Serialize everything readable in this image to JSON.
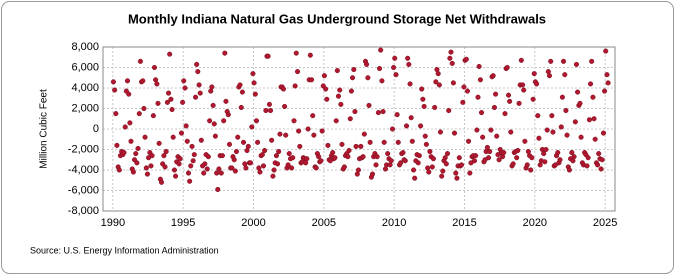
{
  "chart_data": {
    "type": "scatter",
    "title": "Monthly Indiana Natural Gas Underground Storage Net Withdrawals",
    "y_label": "Million Cubic Feet",
    "source": "Source: U.S. Energy Information Administration",
    "color": "#b0182f",
    "grid": true,
    "xlim": [
      1989.3,
      2025.7
    ],
    "xticks": [
      1990,
      1995,
      2000,
      2005,
      2010,
      2015,
      2020,
      2025
    ],
    "ylim": [
      -8000,
      8000
    ],
    "yticks": [
      {
        "value": -8000,
        "label": "-8,000"
      },
      {
        "value": -6000,
        "label": "-6,000"
      },
      {
        "value": -4000,
        "label": "-4,000"
      },
      {
        "value": -2000,
        "label": "-2,000"
      },
      0,
      {
        "value": 2000,
        "label": "2,000"
      },
      {
        "value": 4000,
        "label": "4,000"
      },
      {
        "value": 6000,
        "label": "6,000"
      },
      {
        "value": 8000,
        "label": "8,000"
      }
    ],
    "x": [
      1990.04,
      1990.13,
      1990.21,
      1990.29,
      1990.38,
      1990.46,
      1990.54,
      1990.63,
      1990.71,
      1990.79,
      1990.88,
      1990.96,
      1991.04,
      1991.13,
      1991.21,
      1991.29,
      1991.38,
      1991.46,
      1991.54,
      1991.63,
      1991.71,
      1991.79,
      1991.88,
      1991.96,
      1992.04,
      1992.13,
      1992.21,
      1992.29,
      1992.38,
      1992.46,
      1992.54,
      1992.63,
      1992.71,
      1992.79,
      1992.88,
      1992.96,
      1993.04,
      1993.13,
      1993.21,
      1993.29,
      1993.38,
      1993.46,
      1993.54,
      1993.63,
      1993.71,
      1993.79,
      1993.88,
      1993.96,
      1994.04,
      1994.13,
      1994.21,
      1994.29,
      1994.38,
      1994.46,
      1994.54,
      1994.63,
      1994.71,
      1994.79,
      1994.88,
      1994.96,
      1995.04,
      1995.13,
      1995.21,
      1995.29,
      1995.38,
      1995.46,
      1995.54,
      1995.63,
      1995.71,
      1995.79,
      1995.88,
      1995.96,
      1996.04,
      1996.13,
      1996.21,
      1996.29,
      1996.38,
      1996.46,
      1996.54,
      1996.63,
      1996.71,
      1996.79,
      1996.88,
      1996.96,
      1997.04,
      1997.13,
      1997.21,
      1997.29,
      1997.38,
      1997.46,
      1997.54,
      1997.63,
      1997.71,
      1997.79,
      1997.88,
      1997.96,
      1998.04,
      1998.13,
      1998.21,
      1998.29,
      1998.38,
      1998.46,
      1998.54,
      1998.63,
      1998.71,
      1998.79,
      1998.88,
      1998.96,
      1999.04,
      1999.13,
      1999.21,
      1999.29,
      1999.38,
      1999.46,
      1999.54,
      1999.63,
      1999.71,
      1999.79,
      1999.88,
      1999.96,
      2000.04,
      2000.13,
      2000.21,
      2000.29,
      2000.38,
      2000.46,
      2000.54,
      2000.63,
      2000.71,
      2000.79,
      2000.88,
      2000.96,
      2001.04,
      2001.13,
      2001.21,
      2001.29,
      2001.38,
      2001.46,
      2001.54,
      2001.63,
      2001.71,
      2001.79,
      2001.88,
      2001.96,
      2002.04,
      2002.13,
      2002.21,
      2002.29,
      2002.38,
      2002.46,
      2002.54,
      2002.63,
      2002.71,
      2002.79,
      2002.88,
      2002.96,
      2003.04,
      2003.13,
      2003.21,
      2003.29,
      2003.38,
      2003.46,
      2003.54,
      2003.63,
      2003.71,
      2003.79,
      2003.88,
      2003.96,
      2004.04,
      2004.13,
      2004.21,
      2004.29,
      2004.38,
      2004.46,
      2004.54,
      2004.63,
      2004.71,
      2004.79,
      2004.88,
      2004.96,
      2005.04,
      2005.13,
      2005.21,
      2005.29,
      2005.38,
      2005.46,
      2005.54,
      2005.63,
      2005.71,
      2005.79,
      2005.88,
      2005.96,
      2006.04,
      2006.13,
      2006.21,
      2006.29,
      2006.38,
      2006.46,
      2006.54,
      2006.63,
      2006.71,
      2006.79,
      2006.88,
      2006.96,
      2007.04,
      2007.13,
      2007.21,
      2007.29,
      2007.38,
      2007.46,
      2007.54,
      2007.63,
      2007.71,
      2007.79,
      2007.88,
      2007.96,
      2008.04,
      2008.13,
      2008.21,
      2008.29,
      2008.38,
      2008.46,
      2008.54,
      2008.63,
      2008.71,
      2008.79,
      2008.88,
      2008.96,
      2009.04,
      2009.13,
      2009.21,
      2009.29,
      2009.38,
      2009.46,
      2009.54,
      2009.63,
      2009.71,
      2009.79,
      2009.88,
      2009.96,
      2010.04,
      2010.13,
      2010.21,
      2010.29,
      2010.38,
      2010.46,
      2010.54,
      2010.63,
      2010.71,
      2010.79,
      2010.88,
      2010.96,
      2011.04,
      2011.13,
      2011.21,
      2011.29,
      2011.38,
      2011.46,
      2011.54,
      2011.63,
      2011.71,
      2011.79,
      2011.88,
      2011.96,
      2012.04,
      2012.13,
      2012.21,
      2012.29,
      2012.38,
      2012.46,
      2012.54,
      2012.63,
      2012.71,
      2012.79,
      2012.88,
      2012.96,
      2013.04,
      2013.13,
      2013.21,
      2013.29,
      2013.38,
      2013.46,
      2013.54,
      2013.63,
      2013.71,
      2013.79,
      2013.88,
      2013.96,
      2014.04,
      2014.13,
      2014.21,
      2014.29,
      2014.38,
      2014.46,
      2014.54,
      2014.63,
      2014.71,
      2014.79,
      2014.88,
      2014.96,
      2015.04,
      2015.13,
      2015.21,
      2015.29,
      2015.38,
      2015.46,
      2015.54,
      2015.63,
      2015.71,
      2015.79,
      2015.88,
      2015.96,
      2016.04,
      2016.13,
      2016.21,
      2016.29,
      2016.38,
      2016.46,
      2016.54,
      2016.63,
      2016.71,
      2016.79,
      2016.88,
      2016.96,
      2017.04,
      2017.13,
      2017.21,
      2017.29,
      2017.38,
      2017.46,
      2017.54,
      2017.63,
      2017.71,
      2017.79,
      2017.88,
      2017.96,
      2018.04,
      2018.13,
      2018.21,
      2018.29,
      2018.38,
      2018.46,
      2018.54,
      2018.63,
      2018.71,
      2018.79,
      2018.88,
      2018.96,
      2019.04,
      2019.13,
      2019.21,
      2019.29,
      2019.38,
      2019.46,
      2019.54,
      2019.63,
      2019.71,
      2019.79,
      2019.88,
      2019.96,
      2020.04,
      2020.13,
      2020.21,
      2020.29,
      2020.38,
      2020.46,
      2020.54,
      2020.63,
      2020.71,
      2020.79,
      2020.88,
      2020.96,
      2021.04,
      2021.13,
      2021.21,
      2021.29,
      2021.38,
      2021.46,
      2021.54,
      2021.63,
      2021.71,
      2021.79,
      2021.88,
      2021.96,
      2022.04,
      2022.13,
      2022.21,
      2022.29,
      2022.38,
      2022.46,
      2022.54,
      2022.63,
      2022.71,
      2022.79,
      2022.88,
      2022.96,
      2023.04,
      2023.13,
      2023.21,
      2023.29,
      2023.38,
      2023.46,
      2023.54,
      2023.63,
      2023.71,
      2023.79,
      2023.88,
      2023.96,
      2024.04,
      2024.13,
      2024.21,
      2024.29,
      2024.38,
      2024.46,
      2024.54,
      2024.63,
      2024.71,
      2024.79,
      2024.88,
      2024.96,
      2025.04,
      2025.13,
      2025.21
    ],
    "values": [
      4600,
      3800,
      1500,
      -1600,
      -3700,
      -4000,
      -2600,
      -2200,
      -2500,
      -2300,
      200,
      3700,
      4700,
      3400,
      600,
      -1200,
      -3900,
      -4200,
      -3000,
      -2400,
      -3300,
      -1900,
      1500,
      6600,
      4600,
      4700,
      2000,
      -800,
      -3800,
      -4400,
      -2800,
      -2300,
      -3600,
      -2600,
      1300,
      6000,
      4800,
      4400,
      2500,
      -1400,
      -4900,
      -5200,
      -3400,
      -2600,
      -3700,
      -2200,
      2600,
      3500,
      7300,
      2900,
      1900,
      -800,
      -4000,
      -4600,
      -3200,
      -2700,
      -3400,
      -2900,
      -400,
      2600,
      4700,
      4000,
      300,
      -1200,
      -4300,
      -5100,
      -3600,
      -1700,
      -3100,
      -2500,
      3100,
      6300,
      5600,
      4300,
      3500,
      -1100,
      -3600,
      -4300,
      -3400,
      -2500,
      -3900,
      -2700,
      800,
      3700,
      4100,
      2300,
      500,
      -700,
      -4300,
      -5900,
      -3900,
      -2600,
      -4300,
      -2600,
      800,
      7400,
      2700,
      1700,
      1400,
      -1500,
      -3800,
      -3800,
      -2700,
      -3000,
      -4100,
      -2200,
      -800,
      4100,
      4300,
      2100,
      3600,
      -1300,
      -3400,
      -3800,
      -2100,
      -1700,
      -3300,
      -3300,
      200,
      5400,
      4500,
      3400,
      800,
      -1300,
      -3800,
      -4200,
      -2600,
      -2500,
      -3600,
      -2100,
      1800,
      7100,
      7100,
      2400,
      1800,
      -1100,
      -4600,
      -4000,
      -3300,
      -2600,
      -3400,
      -2200,
      -500,
      4100,
      4100,
      3900,
      2200,
      -600,
      -3800,
      -3500,
      -2400,
      -2900,
      -3800,
      -2800,
      800,
      4200,
      7400,
      5600,
      -200,
      -1700,
      -3300,
      -3200,
      -2800,
      -2900,
      -3300,
      -2900,
      0,
      4800,
      7200,
      4800,
      1300,
      -600,
      -3700,
      -3800,
      -2400,
      -2700,
      -3200,
      -3100,
      -200,
      4200,
      5200,
      3900,
      2900,
      -1600,
      -3000,
      -3100,
      -2600,
      -2300,
      -2900,
      -2800,
      800,
      5700,
      3200,
      3800,
      2400,
      -1500,
      -3900,
      -3700,
      -2600,
      -2400,
      -2700,
      -2100,
      1000,
      3700,
      5000,
      5800,
      1700,
      -1700,
      -4400,
      -4000,
      -2900,
      -1700,
      -2800,
      -2700,
      -500,
      6600,
      6300,
      5000,
      2300,
      -1300,
      -4700,
      -4400,
      -2700,
      -2400,
      -3500,
      -2700,
      1600,
      5900,
      7700,
      4700,
      1700,
      -1300,
      -3900,
      -3500,
      -2400,
      -2900,
      -3500,
      -3100,
      0,
      6000,
      6900,
      5300,
      1400,
      -1300,
      -3500,
      -3300,
      -2400,
      -2300,
      -3000,
      -3100,
      300,
      6900,
      6300,
      4400,
      1100,
      -1200,
      -4000,
      -4800,
      -3100,
      -2500,
      -3300,
      -2600,
      300,
      3900,
      2900,
      2200,
      -700,
      -1500,
      -3800,
      -4200,
      -2200,
      -2700,
      -3700,
      -2900,
      2100,
      4600,
      5800,
      5400,
      4300,
      -300,
      -4600,
      -4100,
      -3100,
      -2800,
      -3400,
      -2400,
      1800,
      6900,
      7500,
      6400,
      4500,
      -400,
      -4300,
      -4800,
      -3600,
      -2800,
      -3600,
      -3500,
      2600,
      4100,
      6700,
      6800,
      3700,
      -1200,
      -4300,
      -3300,
      -2700,
      -2600,
      -3100,
      -2600,
      -100,
      3100,
      6100,
      4800,
      1600,
      -800,
      -3200,
      -3000,
      -2200,
      -1800,
      -2800,
      -2200,
      -100,
      5100,
      5200,
      2100,
      3400,
      -700,
      -2500,
      -3000,
      -2000,
      -2300,
      -2700,
      -2300,
      1500,
      5900,
      6000,
      3300,
      2700,
      -300,
      -3600,
      -3400,
      -2300,
      -2200,
      -2800,
      -2100,
      2500,
      4300,
      6700,
      4300,
      3800,
      -1200,
      -3800,
      -3500,
      -2200,
      -2600,
      -4000,
      -2800,
      2900,
      5400,
      4600,
      4400,
      1300,
      -900,
      -3500,
      -3100,
      -2000,
      -2400,
      -3200,
      -2000,
      -100,
      5600,
      5200,
      6600,
      1300,
      -300,
      -3600,
      -3500,
      -2600,
      -2300,
      -3300,
      -3000,
      200,
      3100,
      6600,
      5300,
      1800,
      -600,
      -3700,
      -4000,
      -2900,
      -2300,
      -3100,
      -2700,
      700,
      6300,
      3600,
      2300,
      2500,
      -800,
      -3300,
      -3500,
      -2300,
      -2500,
      -3600,
      -2800,
      900,
      4400,
      6600,
      3100,
      1000,
      -1000,
      -3300,
      -3500,
      -2400,
      -2900,
      -3900,
      -3000,
      -400,
      3700,
      7600,
      5300,
      4500
    ]
  }
}
